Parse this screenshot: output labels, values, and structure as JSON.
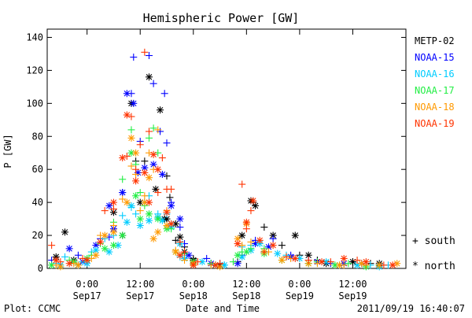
{
  "footer": {
    "plot_credit": "Plot: CCMC",
    "timestamp": "2011/09/19 16:40:07"
  },
  "chart_data": {
    "type": "scatter",
    "title": "Hemispheric Power [GW]",
    "xlabel": "Date and Time",
    "ylabel": "P [GW]",
    "ylim": [
      0,
      145
    ],
    "xlim": [
      -9,
      72
    ],
    "x_unit": "hours since 2011-09-17 00:00 UT",
    "yticks": [
      0,
      20,
      40,
      60,
      80,
      100,
      120,
      140
    ],
    "xticks": [
      {
        "x": 0,
        "time": "0:00",
        "date": "Sep17"
      },
      {
        "x": 12,
        "time": "12:00",
        "date": "Sep17"
      },
      {
        "x": 24,
        "time": "0:00",
        "date": "Sep18"
      },
      {
        "x": 36,
        "time": "12:00",
        "date": "Sep18"
      },
      {
        "x": 48,
        "time": "0:00",
        "date": "Sep19"
      },
      {
        "x": 60,
        "time": "12:00",
        "date": "Sep19"
      }
    ],
    "grid": false,
    "legend_position": "right",
    "markers": {
      "south": "+",
      "north": "*"
    },
    "marker_legend": [
      {
        "symbol": "+",
        "label": "south"
      },
      {
        "symbol": "*",
        "label": "north"
      }
    ],
    "series": [
      {
        "name": "METP-02",
        "color": "#000000",
        "south": [
          [
            11,
            65
          ],
          [
            13,
            65
          ],
          [
            18,
            56
          ],
          [
            18.7,
            43
          ],
          [
            20,
            17
          ],
          [
            21,
            15
          ],
          [
            22,
            13
          ],
          [
            24,
            6
          ],
          [
            28,
            3
          ],
          [
            34,
            4
          ],
          [
            37.5,
            40
          ],
          [
            40,
            25
          ],
          [
            44,
            14
          ],
          [
            48,
            8
          ],
          [
            52,
            5
          ],
          [
            60,
            4
          ],
          [
            64,
            3
          ]
        ],
        "north": [
          [
            -5,
            22
          ],
          [
            -7,
            7
          ],
          [
            -3,
            5
          ],
          [
            6,
            34
          ],
          [
            8,
            20
          ],
          [
            10,
            100
          ],
          [
            12,
            40
          ],
          [
            14,
            116
          ],
          [
            15.5,
            48
          ],
          [
            16.5,
            96
          ],
          [
            17.5,
            30
          ],
          [
            18,
            30
          ],
          [
            20,
            27
          ],
          [
            21,
            19
          ],
          [
            22,
            10
          ],
          [
            24,
            5
          ],
          [
            30,
            2
          ],
          [
            35,
            20
          ],
          [
            37,
            41
          ],
          [
            38,
            38
          ],
          [
            42,
            20
          ],
          [
            47,
            20
          ],
          [
            50,
            8
          ],
          [
            54,
            3
          ],
          [
            60,
            4
          ],
          [
            66,
            3
          ]
        ]
      },
      {
        "name": "NOAA-15",
        "color": "#0000ff",
        "south": [
          [
            -8,
            5
          ],
          [
            -2,
            8
          ],
          [
            3,
            18
          ],
          [
            5,
            19
          ],
          [
            8,
            46
          ],
          [
            10,
            106
          ],
          [
            10.5,
            128
          ],
          [
            12,
            77
          ],
          [
            14,
            129
          ],
          [
            15,
            112
          ],
          [
            16.5,
            83
          ],
          [
            17.5,
            106
          ],
          [
            18,
            76
          ],
          [
            19,
            40
          ],
          [
            21,
            25
          ],
          [
            22,
            15
          ],
          [
            27,
            6
          ],
          [
            30,
            3
          ],
          [
            35,
            8
          ],
          [
            38,
            17
          ],
          [
            42,
            18
          ],
          [
            46,
            8
          ],
          [
            50,
            5
          ],
          [
            55,
            3
          ],
          [
            62,
            3
          ]
        ],
        "north": [
          [
            -4,
            12
          ],
          [
            -1,
            4
          ],
          [
            2,
            14
          ],
          [
            5,
            38
          ],
          [
            6,
            24
          ],
          [
            8,
            46
          ],
          [
            9,
            106
          ],
          [
            10.5,
            100
          ],
          [
            11.5,
            58
          ],
          [
            13,
            61
          ],
          [
            15,
            63
          ],
          [
            17,
            57
          ],
          [
            19,
            38
          ],
          [
            21,
            30
          ],
          [
            23,
            8
          ],
          [
            28,
            3
          ],
          [
            34,
            3
          ],
          [
            38,
            15
          ],
          [
            41,
            13
          ],
          [
            46,
            7
          ],
          [
            52,
            4
          ],
          [
            58,
            3
          ],
          [
            66,
            2
          ]
        ]
      },
      {
        "name": "NOAA-16",
        "color": "#00ccff",
        "south": [
          [
            -7,
            3
          ],
          [
            -5,
            7
          ],
          [
            -1,
            4
          ],
          [
            1,
            10
          ],
          [
            4,
            18
          ],
          [
            6,
            20
          ],
          [
            8,
            32
          ],
          [
            10,
            37
          ],
          [
            11,
            33
          ],
          [
            13,
            40
          ],
          [
            14,
            44
          ],
          [
            16,
            33
          ],
          [
            18,
            33
          ],
          [
            19,
            27
          ],
          [
            21,
            7
          ],
          [
            24,
            3
          ],
          [
            31,
            2
          ],
          [
            35,
            13
          ],
          [
            37,
            14
          ],
          [
            40,
            10
          ],
          [
            45,
            8
          ],
          [
            50,
            3
          ],
          [
            57,
            2
          ],
          [
            64,
            2
          ],
          [
            68,
            2
          ]
        ],
        "north": [
          [
            -6,
            2
          ],
          [
            -2,
            2
          ],
          [
            0,
            3
          ],
          [
            2,
            11
          ],
          [
            5,
            10
          ],
          [
            7,
            14
          ],
          [
            9,
            28
          ],
          [
            10,
            38
          ],
          [
            12,
            26
          ],
          [
            14,
            29
          ],
          [
            16,
            31
          ],
          [
            17,
            29
          ],
          [
            19,
            25
          ],
          [
            21,
            15
          ],
          [
            22,
            6
          ],
          [
            26,
            4
          ],
          [
            31,
            2
          ],
          [
            35,
            7
          ],
          [
            37,
            11
          ],
          [
            39,
            15
          ],
          [
            43,
            9
          ],
          [
            48,
            6
          ],
          [
            54,
            4
          ],
          [
            61,
            2
          ],
          [
            66,
            1
          ]
        ]
      },
      {
        "name": "NOAA-17",
        "color": "#22ee44",
        "south": [
          [
            -4,
            5
          ],
          [
            1,
            8
          ],
          [
            3,
            15
          ],
          [
            6,
            28
          ],
          [
            8,
            54
          ],
          [
            10,
            84
          ],
          [
            11,
            63
          ],
          [
            12,
            46
          ],
          [
            13,
            38
          ],
          [
            14,
            79
          ],
          [
            15,
            85
          ],
          [
            16,
            70
          ],
          [
            19,
            24
          ],
          [
            22,
            9
          ],
          [
            28,
            3
          ],
          [
            33,
            4
          ],
          [
            35,
            10
          ],
          [
            37,
            12
          ],
          [
            40,
            12
          ],
          [
            45,
            7
          ],
          [
            52,
            4
          ],
          [
            59,
            3
          ],
          [
            66,
            2
          ]
        ],
        "north": [
          [
            -8,
            2
          ],
          [
            -3,
            4
          ],
          [
            0,
            6
          ],
          [
            4,
            12
          ],
          [
            6,
            14
          ],
          [
            8,
            20
          ],
          [
            10,
            70
          ],
          [
            11,
            44
          ],
          [
            12,
            30
          ],
          [
            14,
            33
          ],
          [
            16,
            30
          ],
          [
            18,
            24
          ],
          [
            20,
            10
          ],
          [
            24,
            4
          ],
          [
            29,
            2
          ],
          [
            34,
            8
          ],
          [
            36,
            10
          ],
          [
            40,
            9
          ],
          [
            44,
            5
          ],
          [
            50,
            3
          ],
          [
            56,
            2
          ],
          [
            63,
            1
          ]
        ]
      },
      {
        "name": "NOAA-18",
        "color": "#ff9900",
        "south": [
          [
            -7,
            2
          ],
          [
            -3,
            3
          ],
          [
            1,
            6
          ],
          [
            3,
            20
          ],
          [
            6,
            26
          ],
          [
            8,
            42
          ],
          [
            10,
            62
          ],
          [
            11,
            57
          ],
          [
            12,
            35
          ],
          [
            13,
            44
          ],
          [
            14,
            70
          ],
          [
            15,
            60
          ],
          [
            16,
            84
          ],
          [
            18,
            35
          ],
          [
            20,
            11
          ],
          [
            22,
            5
          ],
          [
            28,
            2
          ],
          [
            35,
            14
          ],
          [
            37,
            16
          ],
          [
            41,
            10
          ],
          [
            46,
            6
          ],
          [
            52,
            3
          ],
          [
            58,
            2
          ],
          [
            63,
            2
          ]
        ],
        "north": [
          [
            -6,
            1
          ],
          [
            -2,
            2
          ],
          [
            2,
            8
          ],
          [
            4,
            20
          ],
          [
            6,
            22
          ],
          [
            9,
            40
          ],
          [
            10,
            79
          ],
          [
            11,
            70
          ],
          [
            13,
            40
          ],
          [
            14,
            55
          ],
          [
            15,
            18
          ],
          [
            16,
            22
          ],
          [
            18,
            26
          ],
          [
            20,
            10
          ],
          [
            24,
            3
          ],
          [
            30,
            1
          ],
          [
            34,
            18
          ],
          [
            36,
            27
          ],
          [
            40,
            10
          ],
          [
            44,
            5
          ],
          [
            50,
            3
          ],
          [
            57,
            2
          ],
          [
            62,
            3
          ],
          [
            66,
            2
          ],
          [
            70,
            3
          ]
        ]
      },
      {
        "name": "NOAA-19",
        "color": "#ff3300",
        "south": [
          [
            -8,
            14
          ],
          [
            -6,
            4
          ],
          [
            -1,
            6
          ],
          [
            4,
            35
          ],
          [
            6,
            36
          ],
          [
            9,
            68
          ],
          [
            10,
            92
          ],
          [
            11,
            60
          ],
          [
            12,
            75
          ],
          [
            13,
            131
          ],
          [
            14,
            83
          ],
          [
            16,
            46
          ],
          [
            17,
            67
          ],
          [
            18,
            48
          ],
          [
            19,
            48
          ],
          [
            21,
            16
          ],
          [
            22,
            10
          ],
          [
            25,
            4
          ],
          [
            30,
            3
          ],
          [
            35,
            51
          ],
          [
            36,
            24
          ],
          [
            37,
            35
          ],
          [
            40,
            10
          ],
          [
            45,
            7
          ],
          [
            50,
            5
          ],
          [
            55,
            4
          ],
          [
            61,
            5
          ],
          [
            67,
            2
          ]
        ],
        "north": [
          [
            -7,
            5
          ],
          [
            -4,
            3
          ],
          [
            0,
            5
          ],
          [
            3,
            16
          ],
          [
            6,
            40
          ],
          [
            8,
            67
          ],
          [
            9,
            93
          ],
          [
            11,
            53
          ],
          [
            13,
            58
          ],
          [
            14,
            40
          ],
          [
            15,
            69
          ],
          [
            16,
            60
          ],
          [
            18,
            34
          ],
          [
            19,
            27
          ],
          [
            21,
            8
          ],
          [
            24,
            2
          ],
          [
            29,
            2
          ],
          [
            34,
            15
          ],
          [
            36,
            28
          ],
          [
            37.5,
            41
          ],
          [
            39,
            17
          ],
          [
            42,
            14
          ],
          [
            47,
            6
          ],
          [
            53,
            4
          ],
          [
            58,
            6
          ],
          [
            63,
            4
          ],
          [
            69,
            2
          ]
        ]
      }
    ]
  }
}
